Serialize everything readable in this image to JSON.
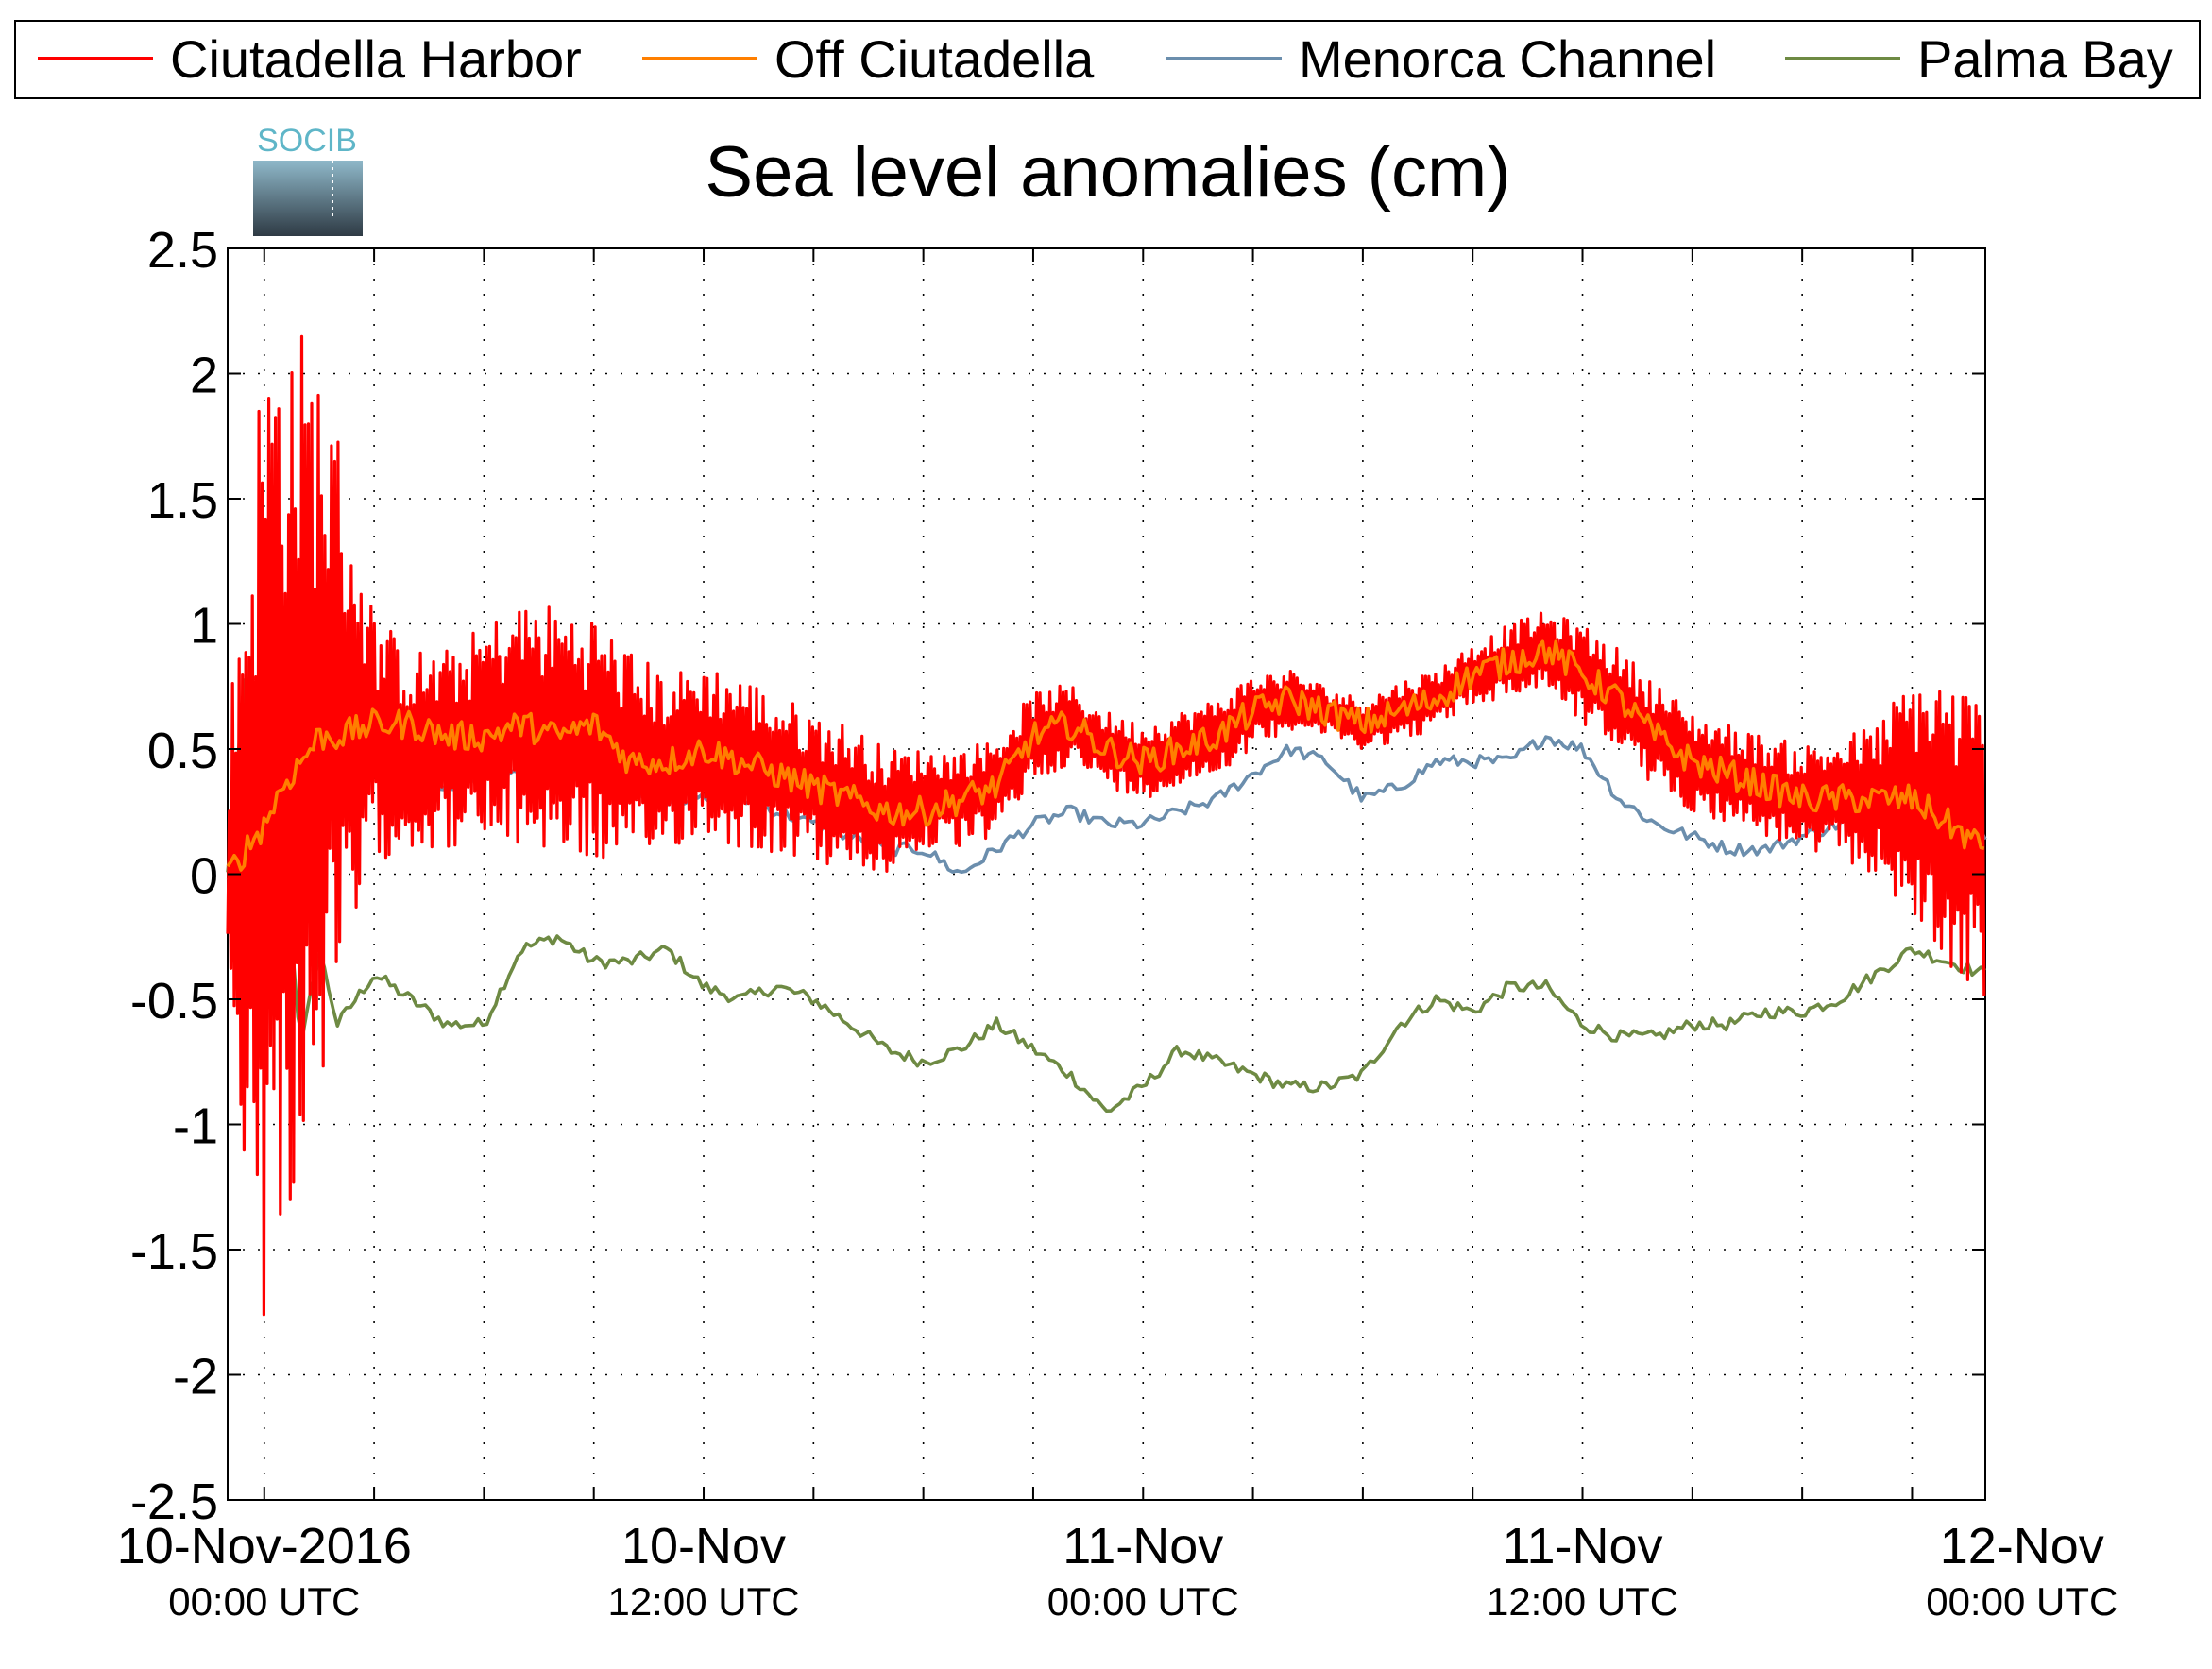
{
  "logo": {
    "text": "SOCIB"
  },
  "chart_data": {
    "type": "line",
    "title": "Sea level anomalies (cm)",
    "xlabel": "",
    "ylabel": "",
    "ylim": [
      -2.5,
      2.5
    ],
    "yticks": [
      -2.5,
      -2,
      -1.5,
      -1,
      -0.5,
      0,
      0.5,
      1,
      1.5,
      2,
      2.5
    ],
    "ytick_labels": [
      "-2.5",
      "-2",
      "-1.5",
      "-1",
      "-0.5",
      "0",
      "0.5",
      "1",
      "1.5",
      "2",
      "2.5"
    ],
    "xlim_hours": [
      -1,
      47
    ],
    "minor_xticks_hours": [
      3,
      6,
      9,
      15,
      18,
      21,
      27,
      30,
      33,
      39,
      42,
      45
    ],
    "xtick_labels": [
      {
        "hour": 0,
        "date": "10-Nov-2016",
        "time": "00:00 UTC"
      },
      {
        "hour": 12,
        "date": "10-Nov",
        "time": "12:00 UTC"
      },
      {
        "hour": 24,
        "date": "11-Nov",
        "time": "00:00 UTC"
      },
      {
        "hour": 36,
        "date": "11-Nov",
        "time": "12:00 UTC"
      },
      {
        "hour": 48,
        "date": "12-Nov",
        "time": "00:00 UTC"
      }
    ],
    "grid": true,
    "legend_position": "top",
    "series": [
      {
        "name": "Ciutadella Harbor",
        "color": "#ff0000",
        "x": [
          -1,
          0,
          0.5,
          1,
          1.5,
          2,
          3,
          4,
          5,
          6,
          7,
          8,
          9,
          10,
          11,
          12,
          13,
          14,
          15,
          16,
          17,
          18,
          19,
          20,
          21,
          22,
          23,
          24,
          25,
          26,
          27,
          28,
          29,
          30,
          31,
          32,
          33,
          34,
          35,
          36,
          37,
          38,
          39,
          40,
          41,
          42,
          43,
          44,
          45,
          46,
          47
        ],
        "y": [
          0,
          0.2,
          0.4,
          0.5,
          0.6,
          0.6,
          0.55,
          0.5,
          0.5,
          0.55,
          0.6,
          0.58,
          0.55,
          0.45,
          0.45,
          0.5,
          0.45,
          0.4,
          0.35,
          0.3,
          0.25,
          0.3,
          0.3,
          0.35,
          0.55,
          0.6,
          0.5,
          0.45,
          0.5,
          0.55,
          0.65,
          0.7,
          0.65,
          0.6,
          0.65,
          0.7,
          0.8,
          0.85,
          0.9,
          0.8,
          0.7,
          0.55,
          0.45,
          0.4,
          0.35,
          0.3,
          0.3,
          0.3,
          0.3,
          0.2,
          0.1
        ],
        "envelope": [
          0.6,
          2.0,
          1.9,
          1.7,
          1.5,
          1.2,
          0.5,
          0.4,
          0.4,
          0.45,
          0.5,
          0.5,
          0.5,
          0.45,
          0.35,
          0.35,
          0.35,
          0.32,
          0.3,
          0.3,
          0.25,
          0.2,
          0.2,
          0.2,
          0.18,
          0.16,
          0.15,
          0.15,
          0.15,
          0.15,
          0.15,
          0.12,
          0.1,
          0.1,
          0.12,
          0.12,
          0.12,
          0.15,
          0.15,
          0.2,
          0.2,
          0.22,
          0.2,
          0.2,
          0.2,
          0.22,
          0.25,
          0.3,
          0.5,
          0.6,
          0.6
        ]
      },
      {
        "name": "Off Ciutadella",
        "color": "#ff7f00",
        "x": [
          -1,
          0,
          0.5,
          1,
          1.5,
          2,
          3,
          4,
          5,
          6,
          7,
          8,
          9,
          10,
          11,
          12,
          13,
          14,
          15,
          16,
          17,
          18,
          19,
          20,
          21,
          22,
          23,
          24,
          25,
          26,
          27,
          28,
          29,
          30,
          31,
          32,
          33,
          34,
          35,
          36,
          37,
          38,
          39,
          40,
          41,
          42,
          43,
          44,
          45,
          46,
          47
        ],
        "y": [
          0,
          0.2,
          0.35,
          0.45,
          0.55,
          0.55,
          0.6,
          0.6,
          0.55,
          0.55,
          0.6,
          0.55,
          0.6,
          0.45,
          0.45,
          0.5,
          0.45,
          0.4,
          0.35,
          0.3,
          0.25,
          0.25,
          0.3,
          0.35,
          0.55,
          0.6,
          0.5,
          0.45,
          0.5,
          0.55,
          0.65,
          0.7,
          0.65,
          0.6,
          0.65,
          0.7,
          0.8,
          0.85,
          0.9,
          0.8,
          0.7,
          0.55,
          0.45,
          0.4,
          0.35,
          0.3,
          0.3,
          0.3,
          0.3,
          0.2,
          0.1
        ]
      },
      {
        "name": "Menorca Channel",
        "color": "#6b8ead",
        "x": [
          -1,
          0,
          0.5,
          1,
          2,
          3,
          4,
          5,
          6,
          7,
          8,
          9,
          10,
          11,
          12,
          13,
          14,
          15,
          16,
          17,
          18,
          19,
          20,
          21,
          22,
          23,
          24,
          25,
          26,
          27,
          28,
          29,
          30,
          31,
          32,
          33,
          34,
          35,
          36,
          37,
          38,
          39,
          40,
          41,
          42,
          43,
          44,
          45,
          46,
          47
        ],
        "y": [
          0,
          -0.1,
          0.3,
          0.6,
          0.45,
          0.5,
          0.4,
          0.35,
          0.4,
          0.4,
          0.4,
          0.4,
          0.3,
          0.3,
          0.3,
          0.3,
          0.25,
          0.2,
          0.15,
          0.1,
          0.1,
          0.0,
          0.1,
          0.2,
          0.25,
          0.2,
          0.2,
          0.25,
          0.3,
          0.4,
          0.5,
          0.45,
          0.3,
          0.35,
          0.45,
          0.45,
          0.45,
          0.55,
          0.5,
          0.3,
          0.2,
          0.15,
          0.1,
          0.1,
          0.15,
          0.2,
          0.25,
          0.25,
          0.2,
          0.15
        ]
      },
      {
        "name": "Palma Bay",
        "color": "#6e8a43",
        "x": [
          -1,
          -0.5,
          0,
          0.5,
          1,
          1.5,
          2,
          3,
          4,
          5,
          6,
          7,
          8,
          9,
          10,
          11,
          12,
          13,
          14,
          15,
          16,
          17,
          18,
          19,
          20,
          21,
          22,
          23,
          24,
          25,
          26,
          27,
          28,
          29,
          30,
          31,
          32,
          33,
          34,
          35,
          36,
          37,
          38,
          39,
          40,
          41,
          42,
          43,
          44,
          45,
          46,
          47
        ],
        "y": [
          0,
          0.8,
          -0.3,
          0.2,
          -0.7,
          -0.3,
          -0.6,
          -0.4,
          -0.5,
          -0.6,
          -0.6,
          -0.3,
          -0.25,
          -0.35,
          -0.35,
          -0.3,
          -0.45,
          -0.5,
          -0.45,
          -0.5,
          -0.6,
          -0.7,
          -0.75,
          -0.7,
          -0.6,
          -0.7,
          -0.8,
          -0.95,
          -0.85,
          -0.7,
          -0.75,
          -0.8,
          -0.85,
          -0.85,
          -0.8,
          -0.6,
          -0.5,
          -0.55,
          -0.45,
          -0.45,
          -0.6,
          -0.65,
          -0.65,
          -0.6,
          -0.6,
          -0.55,
          -0.55,
          -0.5,
          -0.4,
          -0.3,
          -0.35,
          -0.4
        ]
      }
    ]
  }
}
